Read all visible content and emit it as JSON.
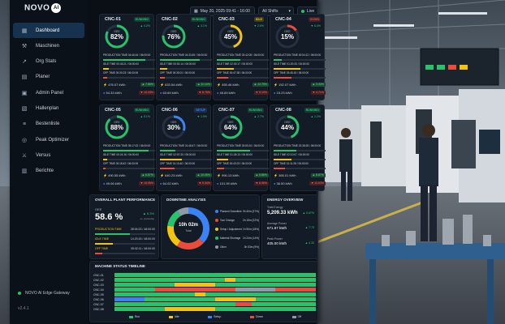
{
  "brand": {
    "name": "NOVO",
    "ai": "AI"
  },
  "nav": [
    {
      "label": "Dashboard",
      "icon": "▦"
    },
    {
      "label": "Maschinen",
      "icon": "⚒"
    },
    {
      "label": "Org Stats",
      "icon": "↗"
    },
    {
      "label": "Planer",
      "icon": "▤"
    },
    {
      "label": "Admin Panel",
      "icon": "▣"
    },
    {
      "label": "Hallenplan",
      "icon": "▧"
    },
    {
      "label": "Bestenliste",
      "icon": "≡"
    },
    {
      "label": "Peak Optimizer",
      "icon": "◎"
    },
    {
      "label": "Versus",
      "icon": "⚔"
    },
    {
      "label": "Berichte",
      "icon": "▥"
    }
  ],
  "gateway": "NOVO AI Edge Gateway",
  "version": "v2.4.1",
  "topbar": {
    "datetime": "May 20, 2025 09:41 - 16:00",
    "shift": "All Shifts",
    "live": "Live"
  },
  "labels": {
    "oee": "OEE",
    "production_time": "PRODUCTION TIME",
    "idle_time": "IDLE TIME",
    "off_time": "OFF TIME"
  },
  "machines": [
    {
      "name": "CNC-01",
      "status": "RUNNING",
      "oee_text": "82%",
      "oee": 0.82,
      "delta": "▲ 4.2%",
      "prod": "PRODUCTION TIME 04:46:16 / 06:00:00",
      "idle": "IDLE TIME 00:43:21 / 06:00:00",
      "off": "OFF TIME 00:30:23 / 06:00:00",
      "kwh": "476.07 kWh",
      "kwh_d": "▲ 7.86%",
      "eur": "54.33 kWh",
      "eur_d": "▼ 10.33%"
    },
    {
      "name": "CNC-02",
      "status": "RUNNING",
      "oee_text": "76%",
      "oee": 0.76,
      "delta": "▲ 3.1%",
      "prod": "PRODUCTION TIME 04:33:45 / 06:00:00",
      "idle": "IDLE TIME 00:51:14 / 06:00:00",
      "off": "OFF TIME 00:35:01 / 06:00:00",
      "kwh": "633.54 kWh",
      "kwh_d": "▲ 11.14%",
      "eur": "63.69 kWh",
      "eur_d": "▼ 8.76%"
    },
    {
      "name": "CNC-03",
      "status": "IDLE",
      "oee_text": "45%",
      "oee": 0.45,
      "delta": "▼ 2.6%",
      "prod": "PRODUCTION TIME 02:42:05 / 06:00:00",
      "idle": "IDLE TIME 02:30:17 / 06:00:00",
      "off": "OFF TIME 00:47:38 / 06:00:00",
      "kwh": "455.46 kWh",
      "kwh_d": "▲ 12.75%",
      "eur": "45.69 kWh",
      "eur_d": "▼ 9.10%"
    },
    {
      "name": "CNC-04",
      "status": "DOWN",
      "oee_text": "15%",
      "oee": 0.15,
      "delta": "▼ 6.4%",
      "prod": "PRODUCTION TIME 00:54:12 / 06:00:00",
      "idle": "IDLE TIME 01:20:33 / 06:00:00",
      "off": "OFF TIME 03:45:15 / 06:00:00",
      "kwh": "152.07 kWh",
      "kwh_d": "▲ 3.33%",
      "eur": "15.23 kWh",
      "eur_d": "▼ 4.71%"
    },
    {
      "name": "CNC-05",
      "status": "RUNNING",
      "oee_text": "88%",
      "oee": 0.88,
      "delta": "▲ 5.1%",
      "prod": "PRODUCTION TIME 05:17:02 / 06:00:00",
      "idle": "IDLE TIME 00:24:16 / 06:00:00",
      "off": "OFF TIME 00:18:42 / 06:00:00",
      "kwh": "490.55 kWh",
      "kwh_d": "▲ 6.87%",
      "eur": "49.06 kWh",
      "eur_d": "▼ 10.95%"
    },
    {
      "name": "CNC-06",
      "status": "SETUP",
      "oee_text": "30%",
      "oee": 0.3,
      "delta": "▼ 1.9%",
      "prod": "PRODUCTION TIME 01:48:47 / 06:00:00",
      "idle": "IDLE TIME 02:57:33 / 06:00:00",
      "off": "OFF TIME 01:13:40 / 06:00:00",
      "kwh": "640.23 kWh",
      "kwh_d": "▲ 10.05%",
      "eur": "64.02 kWh",
      "eur_d": "▼ 9.34%"
    },
    {
      "name": "CNC-07",
      "status": "RUNNING",
      "oee_text": "64%",
      "oee": 0.64,
      "delta": "▲ 2.7%",
      "prod": "PRODUCTION TIME 03:50:24 / 06:00:00",
      "idle": "IDLE TIME 01:26:13 / 06:00:00",
      "off": "OFF TIME 00:43:23 / 06:00:00",
      "kwh": "990.13 kWh",
      "kwh_d": "▲ 5.88%",
      "eur": "101.99 kWh",
      "eur_d": "▼ 8.96%"
    },
    {
      "name": "CNC-08",
      "status": "RUNNING",
      "oee_text": "44%",
      "oee": 0.44,
      "delta": "▲ 1.2%",
      "prod": "PRODUCTION TIME 02:38:25 / 06:00:00",
      "idle": "IDLE TIME 02:10:07 / 06:00:00",
      "off": "OFF TIME 01:11:28 / 06:00:00",
      "kwh": "365.01 kWh",
      "kwh_d": "▲ 8.87%",
      "eur": "36.50 kWh",
      "eur_d": "▼ 11.03%"
    }
  ],
  "status_colors": {
    "RUNNING": "#27c26b",
    "IDLE": "#f1c40f",
    "DOWN": "#e74c3c",
    "SETUP": "#3b82f6"
  },
  "overall": {
    "title": "OVERALL PLANT PERFORMANCE",
    "oee_label": "OEE",
    "oee_value": "58.6 %",
    "oee_delta": "▲ 6.3%",
    "delta_note": "vs. yesterday",
    "prod": "28:04:23 / 48:00:00",
    "idle": "14:23:15 / 48:00:00",
    "off": "05:32:11 / 48:00:00",
    "prod_frac": 0.58,
    "idle_frac": 0.3,
    "off_frac": 0.12
  },
  "downtime": {
    "title": "DOWNTIME ANALYSIS",
    "total": "10h 02m",
    "total_label": "Total",
    "segments": [
      {
        "name": "Planned Downtime",
        "value": "3h 40m (37%)",
        "frac": 0.37,
        "color": "#3b82f6"
      },
      {
        "name": "Tool Change",
        "value": "2h 15m (22%)",
        "frac": 0.22,
        "color": "#e74c3c"
      },
      {
        "name": "Setup / Adjustment",
        "value": "1h 50m (18%)",
        "frac": 0.18,
        "color": "#f1c40f"
      },
      {
        "name": "Material Shortage",
        "value": "1h 24m (14%)",
        "frac": 0.14,
        "color": "#27c26b"
      },
      {
        "name": "Other",
        "value": "0h 53m (9%)",
        "frac": 0.09,
        "color": "#8e9aa6"
      }
    ]
  },
  "energy": {
    "title": "ENERGY OVERVIEW",
    "total_label": "Total Energy",
    "total_value": "5,209.33 kWh",
    "total_delta": "▲ 5.67%",
    "avg_label": "Average Power",
    "avg_value": "671.87 kWh",
    "avg_delta": "▲ 7.73",
    "peak_label": "Peak Power",
    "peak_value": "405.00 kWh",
    "peak_delta": "▲ 4.33"
  },
  "timeline": {
    "title": "MACHINE STATUS TIMELINE",
    "rows": [
      "CNC-01",
      "CNC-02",
      "CNC-03",
      "CNC-04",
      "CNC-05",
      "CNC-06",
      "CNC-07",
      "CNC-08"
    ],
    "legend": [
      {
        "label": "Run",
        "color": "#27c26b"
      },
      {
        "label": "Idle",
        "color": "#f1c40f"
      },
      {
        "label": "Setup",
        "color": "#3b82f6"
      },
      {
        "label": "Down",
        "color": "#e74c3c"
      },
      {
        "label": "Off",
        "color": "#8e9aa6"
      }
    ]
  }
}
